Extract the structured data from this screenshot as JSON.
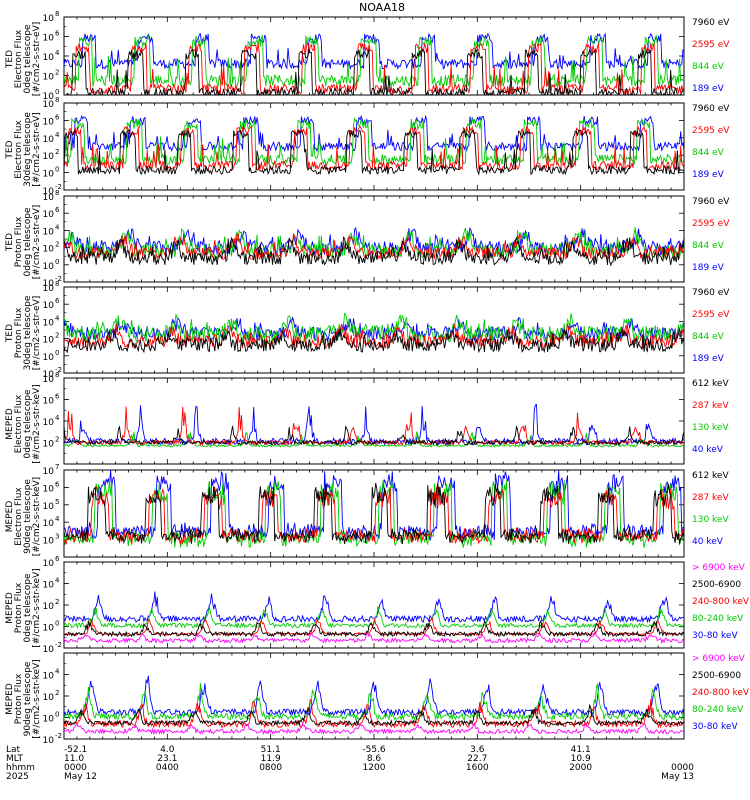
{
  "title": "NOAA18",
  "colors": {
    "black": "#000000",
    "red": "#ff0000",
    "green": "#00cc00",
    "blue": "#0000ff",
    "magenta": "#ff00ff"
  },
  "chart_data": [
    {
      "type": "line",
      "ylabel": [
        "TED",
        "Electron Flux",
        "0deg telescope",
        "[#/cm2-s-str-eV]"
      ],
      "ylim_exp": [
        0,
        8
      ],
      "yticks": [
        {
          "b": "10",
          "e": "0"
        },
        {
          "b": "10",
          "e": "2"
        },
        {
          "b": "10",
          "e": "4"
        },
        {
          "b": "10",
          "e": "6"
        },
        {
          "b": "10",
          "e": "8"
        }
      ],
      "legend": [
        {
          "label": "7960 eV",
          "color": "black"
        },
        {
          "label": "2595 eV",
          "color": "red"
        },
        {
          "label": "844 eV",
          "color": "green"
        },
        {
          "label": "189 eV",
          "color": "blue"
        }
      ],
      "series": [
        {
          "color": "blue",
          "base": 3.2,
          "peak": 5.8,
          "noise": 0.5
        },
        {
          "color": "green",
          "base": 1.5,
          "peak": 5.5,
          "noise": 0.6
        },
        {
          "color": "red",
          "base": 0.6,
          "peak": 4.8,
          "noise": 0.5
        },
        {
          "color": "black",
          "base": 0.2,
          "peak": 4.2,
          "noise": 0.5
        }
      ],
      "pattern": "pass"
    },
    {
      "type": "line",
      "ylabel": [
        "TED",
        "Electron Flux",
        "30deg telescope",
        "[#/cm2-s-str-eV]"
      ],
      "ylim_exp": [
        -2,
        8
      ],
      "yticks": [
        {
          "b": "10",
          "e": "-2"
        },
        {
          "b": "10",
          "e": "0"
        },
        {
          "b": "10",
          "e": "2"
        },
        {
          "b": "10",
          "e": "4"
        },
        {
          "b": "10",
          "e": "6"
        },
        {
          "b": "10",
          "e": "8"
        }
      ],
      "legend": [
        {
          "label": "7960 eV",
          "color": "black"
        },
        {
          "label": "2595 eV",
          "color": "red"
        },
        {
          "label": "844 eV",
          "color": "green"
        },
        {
          "label": "189 eV",
          "color": "blue"
        }
      ],
      "series": [
        {
          "color": "blue",
          "base": 3.0,
          "peak": 6.0,
          "noise": 0.5
        },
        {
          "color": "green",
          "base": 1.5,
          "peak": 5.6,
          "noise": 0.6
        },
        {
          "color": "red",
          "base": 0.8,
          "peak": 4.8,
          "noise": 0.5
        },
        {
          "color": "black",
          "base": 0.3,
          "peak": 4.4,
          "noise": 0.5
        }
      ],
      "pattern": "pass"
    },
    {
      "type": "line",
      "ylabel": [
        "TED",
        "Proton Flux",
        "0deg telescope",
        "[#/cm2-s-str-eV]"
      ],
      "ylim_exp": [
        -2,
        8
      ],
      "yticks": [
        {
          "b": "10",
          "e": "-2"
        },
        {
          "b": "10",
          "e": "0"
        },
        {
          "b": "10",
          "e": "2"
        },
        {
          "b": "10",
          "e": "4"
        },
        {
          "b": "10",
          "e": "6"
        },
        {
          "b": "10",
          "e": "8"
        }
      ],
      "legend": [
        {
          "label": "7960 eV",
          "color": "black"
        },
        {
          "label": "2595 eV",
          "color": "red"
        },
        {
          "label": "844 eV",
          "color": "green"
        },
        {
          "label": "189 eV",
          "color": "blue"
        }
      ],
      "series": [
        {
          "color": "blue",
          "base": 1.5,
          "peak": 3.5,
          "noise": 0.8
        },
        {
          "color": "green",
          "base": 1.0,
          "peak": 3.5,
          "noise": 0.9
        },
        {
          "color": "red",
          "base": 0.8,
          "peak": 3.0,
          "noise": 0.7
        },
        {
          "color": "black",
          "base": 0.2,
          "peak": 2.5,
          "noise": 0.8
        }
      ],
      "pattern": "noisy"
    },
    {
      "type": "line",
      "ylabel": [
        "TED",
        "Proton Flux",
        "30deg telescope",
        "[#/cm2-s-str-eV]"
      ],
      "ylim_exp": [
        -2,
        8
      ],
      "yticks": [
        {
          "b": "10",
          "e": "-2"
        },
        {
          "b": "10",
          "e": "0"
        },
        {
          "b": "10",
          "e": "2"
        },
        {
          "b": "10",
          "e": "4"
        },
        {
          "b": "10",
          "e": "6"
        },
        {
          "b": "10",
          "e": "8"
        }
      ],
      "legend": [
        {
          "label": "7960 eV",
          "color": "black"
        },
        {
          "label": "2595 eV",
          "color": "red"
        },
        {
          "label": "844 eV",
          "color": "green"
        },
        {
          "label": "189 eV",
          "color": "blue"
        }
      ],
      "series": [
        {
          "color": "blue",
          "base": 2.2,
          "peak": 3.8,
          "noise": 0.8
        },
        {
          "color": "green",
          "base": 2.0,
          "peak": 4.0,
          "noise": 1.0
        },
        {
          "color": "red",
          "base": 1.2,
          "peak": 3.0,
          "noise": 0.8
        },
        {
          "color": "black",
          "base": 0.8,
          "peak": 2.5,
          "noise": 0.8
        }
      ],
      "pattern": "noisy"
    },
    {
      "type": "line",
      "ylabel": [
        "MEPED",
        "Electron Flux",
        "0deg telescope",
        "[#/cm2-s-str-keV]"
      ],
      "ylim_exp": [
        0,
        8
      ],
      "yticks": [
        {
          "b": "10",
          "e": "2"
        },
        {
          "b": "10",
          "e": "4"
        },
        {
          "b": "10",
          "e": "6"
        },
        {
          "b": "10",
          "e": "8"
        }
      ],
      "legend": [
        {
          "label": "612 keV",
          "color": "black"
        },
        {
          "label": "287 keV",
          "color": "red"
        },
        {
          "label": "130 keV",
          "color": "green"
        },
        {
          "label": "40 keV",
          "color": "blue"
        }
      ],
      "series": [
        {
          "color": "blue",
          "base": 2.1,
          "peak": 5.5,
          "noise": 0.3
        },
        {
          "color": "green",
          "base": 1.7,
          "peak": 3.0,
          "noise": 0.1
        },
        {
          "color": "red",
          "base": 2.0,
          "peak": 5.5,
          "noise": 0.2
        },
        {
          "color": "black",
          "base": 2.0,
          "peak": 3.5,
          "noise": 0.2
        }
      ],
      "pattern": "meped-e0"
    },
    {
      "type": "line",
      "ylabel": [
        "MEPED",
        "Electron Flux",
        "90deg telescope",
        "[#/cm2-s-str-keV]"
      ],
      "ylim_exp": [
        2,
        7
      ],
      "yticks": [
        {
          "b": "10",
          "e": "3"
        },
        {
          "b": "10",
          "e": "4"
        },
        {
          "b": "10",
          "e": "5"
        },
        {
          "b": "10",
          "e": "6"
        },
        {
          "b": "10",
          "e": "7"
        }
      ],
      "legend": [
        {
          "label": "612 keV",
          "color": "black"
        },
        {
          "label": "287 keV",
          "color": "red"
        },
        {
          "label": "130 keV",
          "color": "green"
        },
        {
          "label": "40 keV",
          "color": "blue"
        }
      ],
      "series": [
        {
          "color": "blue",
          "base": 3.2,
          "peak": 6.8,
          "noise": 0.3
        },
        {
          "color": "green",
          "base": 2.8,
          "peak": 6.2,
          "noise": 0.3
        },
        {
          "color": "red",
          "base": 3.0,
          "peak": 5.8,
          "noise": 0.3
        },
        {
          "color": "black",
          "base": 3.0,
          "peak": 6.0,
          "noise": 0.3
        }
      ],
      "pattern": "dense"
    },
    {
      "type": "line",
      "ylabel": [
        "MEPED",
        "Proton Flux",
        "0deg telescope",
        "[#/cm2-s-str-keV]"
      ],
      "ylim_exp": [
        -2,
        6
      ],
      "yticks": [
        {
          "b": "10",
          "e": "-2"
        },
        {
          "b": "10",
          "e": "0"
        },
        {
          "b": "10",
          "e": "2"
        },
        {
          "b": "10",
          "e": "4"
        },
        {
          "b": "10",
          "e": "6"
        }
      ],
      "legend": [
        {
          "label": "> 6900 keV",
          "color": "magenta"
        },
        {
          "label": "2500-6900",
          "color": "black"
        },
        {
          "label": "240-800 keV",
          "color": "red"
        },
        {
          "label": "80-240 keV",
          "color": "green"
        },
        {
          "label": "30-80 keV",
          "color": "blue"
        }
      ],
      "series": [
        {
          "color": "blue",
          "base": 0.7,
          "peak": 3.2,
          "noise": 0.3
        },
        {
          "color": "green",
          "base": 0.1,
          "peak": 2.0,
          "noise": 0.2
        },
        {
          "color": "red",
          "base": -0.7,
          "peak": 0.8,
          "noise": 0.1
        },
        {
          "color": "black",
          "base": -0.7,
          "peak": 0.5,
          "noise": 0.2
        },
        {
          "color": "magenta",
          "base": -1.3,
          "peak": -0.6,
          "noise": 0.2
        }
      ],
      "pattern": "proton"
    },
    {
      "type": "line",
      "ylabel": [
        "MEPED",
        "Proton Flux",
        "90deg telescope",
        "[#/cm2-s-str-keV]"
      ],
      "ylim_exp": [
        -2,
        6
      ],
      "yticks": [
        {
          "b": "10",
          "e": "-2"
        },
        {
          "b": "10",
          "e": "0"
        },
        {
          "b": "10",
          "e": "2"
        },
        {
          "b": "10",
          "e": "4"
        }
      ],
      "legend": [
        {
          "label": "> 6900 keV",
          "color": "magenta"
        },
        {
          "label": "2500-6900",
          "color": "black"
        },
        {
          "label": "240-800 keV",
          "color": "red"
        },
        {
          "label": "80-240 keV",
          "color": "green"
        },
        {
          "label": "30-80 keV",
          "color": "blue"
        }
      ],
      "series": [
        {
          "color": "blue",
          "base": 0.5,
          "peak": 4.0,
          "noise": 0.3
        },
        {
          "color": "green",
          "base": 0.1,
          "peak": 3.0,
          "noise": 0.3
        },
        {
          "color": "red",
          "base": -0.6,
          "peak": 1.5,
          "noise": 0.3
        },
        {
          "color": "black",
          "base": -0.5,
          "peak": 1.0,
          "noise": 0.2
        },
        {
          "color": "magenta",
          "base": -1.3,
          "peak": -0.5,
          "noise": 0.2
        }
      ],
      "pattern": "proton"
    }
  ],
  "footer": {
    "row_labels": [
      "Lat",
      "MLT",
      "hhmm",
      "2025"
    ],
    "columns": [
      {
        "lat": "-52.1",
        "mlt": "11.0",
        "hhmm": "0000",
        "date": "May 12"
      },
      {
        "lat": "4.0",
        "mlt": "23.1",
        "hhmm": "0400",
        "date": ""
      },
      {
        "lat": "51.1",
        "mlt": "11.9",
        "hhmm": "0800",
        "date": ""
      },
      {
        "lat": "-55.6",
        "mlt": "8.6",
        "hhmm": "1200",
        "date": ""
      },
      {
        "lat": "3.6",
        "mlt": "22.7",
        "hhmm": "1600",
        "date": ""
      },
      {
        "lat": "41.1",
        "mlt": "10.9",
        "hhmm": "2000",
        "date": ""
      },
      {
        "lat": "",
        "mlt": "",
        "hhmm": "0000",
        "date": "May 13"
      }
    ]
  }
}
